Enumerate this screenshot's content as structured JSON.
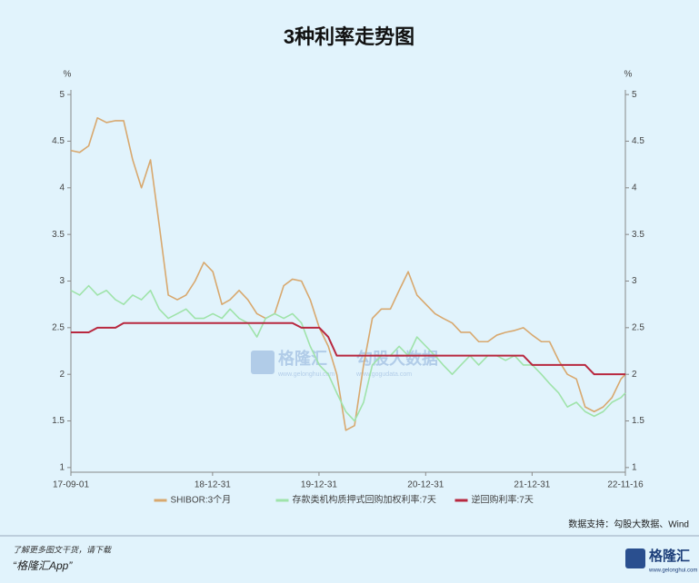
{
  "chart_data": {
    "type": "line",
    "title": "3种利率走势图",
    "y_label": "%",
    "y2_label": "%",
    "x": [
      "17-09-01",
      "17-10-01",
      "17-11-01",
      "17-12-01",
      "18-01-01",
      "18-02-01",
      "18-03-01",
      "18-04-01",
      "18-05-01",
      "18-06-01",
      "18-07-01",
      "18-08-01",
      "18-09-01",
      "18-10-01",
      "18-11-01",
      "18-12-01",
      "19-01-01",
      "19-02-01",
      "19-03-01",
      "19-04-01",
      "19-05-01",
      "19-06-01",
      "19-07-01",
      "19-08-01",
      "19-09-01",
      "19-10-01",
      "19-11-01",
      "19-12-01",
      "20-01-01",
      "20-02-01",
      "20-03-01",
      "20-04-01",
      "20-05-01",
      "20-06-01",
      "20-07-01",
      "20-08-01",
      "20-09-01",
      "20-10-01",
      "20-11-01",
      "20-12-01",
      "21-01-01",
      "21-02-01",
      "21-03-01",
      "21-04-01",
      "21-05-01",
      "21-06-01",
      "21-07-01",
      "21-08-01",
      "21-09-01",
      "21-10-01",
      "21-11-01",
      "21-12-01",
      "22-01-01",
      "22-02-01",
      "22-03-01",
      "22-04-01",
      "22-05-01",
      "22-06-01",
      "22-07-01",
      "22-08-01",
      "22-09-01",
      "22-10-01",
      "22-11-01",
      "22-11-16"
    ],
    "xlim": [
      "17-09-01",
      "22-11-16"
    ],
    "xticks": [
      "17-09-01",
      "18-12-31",
      "19-12-31",
      "20-12-31",
      "21-12-31",
      "22-11-16"
    ],
    "ylim": [
      0.95,
      5.05
    ],
    "yticks": [
      1,
      1.5,
      2,
      2.5,
      3,
      3.5,
      4,
      4.5,
      5
    ],
    "y2lim": [
      0.95,
      5.05
    ],
    "y2ticks": [
      1,
      1.5,
      2,
      2.5,
      3,
      3.5,
      4,
      4.5,
      5
    ],
    "series": [
      {
        "name": "SHIBOR:3个月",
        "color": "#d8a86e",
        "values": [
          4.4,
          4.38,
          4.45,
          4.75,
          4.7,
          4.72,
          4.72,
          4.3,
          4.0,
          4.3,
          3.6,
          2.85,
          2.8,
          2.85,
          3.0,
          3.2,
          3.1,
          2.75,
          2.8,
          2.9,
          2.8,
          2.65,
          2.6,
          2.65,
          2.95,
          3.02,
          3.0,
          2.8,
          2.5,
          2.3,
          2.0,
          1.4,
          1.45,
          2.1,
          2.6,
          2.7,
          2.7,
          2.9,
          3.1,
          2.85,
          2.75,
          2.65,
          2.6,
          2.55,
          2.45,
          2.45,
          2.35,
          2.35,
          2.42,
          2.45,
          2.47,
          2.5,
          2.42,
          2.35,
          2.35,
          2.15,
          2.0,
          1.95,
          1.65,
          1.6,
          1.65,
          1.75,
          1.95,
          2.0
        ]
      },
      {
        "name": "存款类机构质押式回购加权利率:7天",
        "color": "#9fe3aa",
        "values": [
          2.9,
          2.85,
          2.95,
          2.85,
          2.9,
          2.8,
          2.75,
          2.85,
          2.8,
          2.9,
          2.7,
          2.6,
          2.65,
          2.7,
          2.6,
          2.6,
          2.65,
          2.6,
          2.7,
          2.6,
          2.55,
          2.4,
          2.6,
          2.65,
          2.6,
          2.65,
          2.55,
          2.3,
          2.1,
          2.0,
          1.8,
          1.6,
          1.5,
          1.7,
          2.1,
          2.2,
          2.2,
          2.3,
          2.2,
          2.4,
          2.3,
          2.2,
          2.1,
          2.0,
          2.1,
          2.2,
          2.1,
          2.2,
          2.2,
          2.15,
          2.2,
          2.1,
          2.1,
          2.0,
          1.9,
          1.8,
          1.65,
          1.7,
          1.6,
          1.55,
          1.6,
          1.7,
          1.75,
          1.8
        ]
      },
      {
        "name": "逆回购利率:7天",
        "color": "#b8283f",
        "values": [
          2.45,
          2.45,
          2.45,
          2.5,
          2.5,
          2.5,
          2.55,
          2.55,
          2.55,
          2.55,
          2.55,
          2.55,
          2.55,
          2.55,
          2.55,
          2.55,
          2.55,
          2.55,
          2.55,
          2.55,
          2.55,
          2.55,
          2.55,
          2.55,
          2.55,
          2.55,
          2.5,
          2.5,
          2.5,
          2.4,
          2.2,
          2.2,
          2.2,
          2.2,
          2.2,
          2.2,
          2.2,
          2.2,
          2.2,
          2.2,
          2.2,
          2.2,
          2.2,
          2.2,
          2.2,
          2.2,
          2.2,
          2.2,
          2.2,
          2.2,
          2.2,
          2.2,
          2.1,
          2.1,
          2.1,
          2.1,
          2.1,
          2.1,
          2.1,
          2.0,
          2.0,
          2.0,
          2.0,
          2.0
        ]
      }
    ]
  },
  "watermark": {
    "brand": "格隆汇",
    "brand_url": "www.gelonghui.com",
    "partner": "勾股大数据",
    "partner_url": "www.gogudata.com"
  },
  "source": "数据支持：勾股大数据、Wind",
  "footer": {
    "line1": "了解更多图文干货，请下载",
    "line2": "“格隆汇App”",
    "logo": "格隆汇",
    "logo_url": "www.gelonghui.com"
  }
}
